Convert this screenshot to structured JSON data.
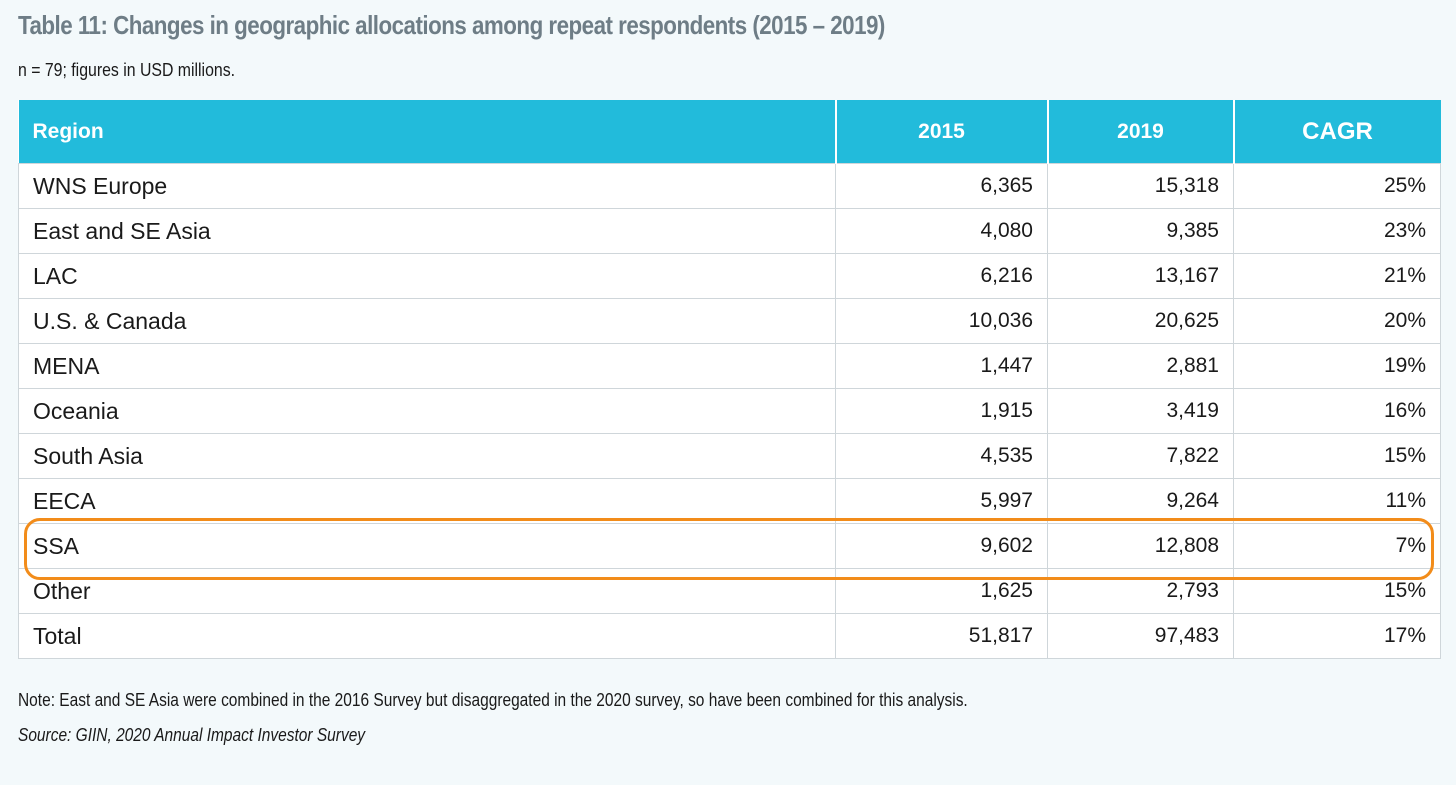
{
  "title": "Table 11: Changes in geographic allocations among repeat respondents (2015 – 2019)",
  "subtitle": "n = 79; figures in USD millions.",
  "table": {
    "headers": [
      "Region",
      "2015",
      "2019",
      "CAGR"
    ],
    "rows": [
      [
        "WNS Europe",
        "6,365",
        "15,318",
        "25%"
      ],
      [
        "East and SE Asia",
        "4,080",
        "9,385",
        "23%"
      ],
      [
        "LAC",
        "6,216",
        "13,167",
        "21%"
      ],
      [
        "U.S. & Canada",
        "10,036",
        "20,625",
        "20%"
      ],
      [
        "MENA",
        "1,447",
        "2,881",
        "19%"
      ],
      [
        "Oceania",
        "1,915",
        "3,419",
        "16%"
      ],
      [
        "South Asia",
        "4,535",
        "7,822",
        "15%"
      ],
      [
        "EECA",
        "5,997",
        "9,264",
        "11%"
      ],
      [
        "SSA",
        "9,602",
        "12,808",
        "7%"
      ],
      [
        "Other",
        "1,625",
        "2,793",
        "15%"
      ],
      [
        "Total",
        "51,817",
        "97,483",
        "17%"
      ]
    ],
    "highlighted_row": "SSA"
  },
  "colors": {
    "header_bg": "#22bbdb",
    "highlight_outline": "#f28c1a",
    "title_color": "#6e7d86"
  },
  "note": "Note: East and SE Asia were combined in the 2016 Survey but disaggregated in the 2020 survey, so have been combined for this analysis.",
  "source": "Source: GIIN, 2020 Annual Impact Investor Survey"
}
